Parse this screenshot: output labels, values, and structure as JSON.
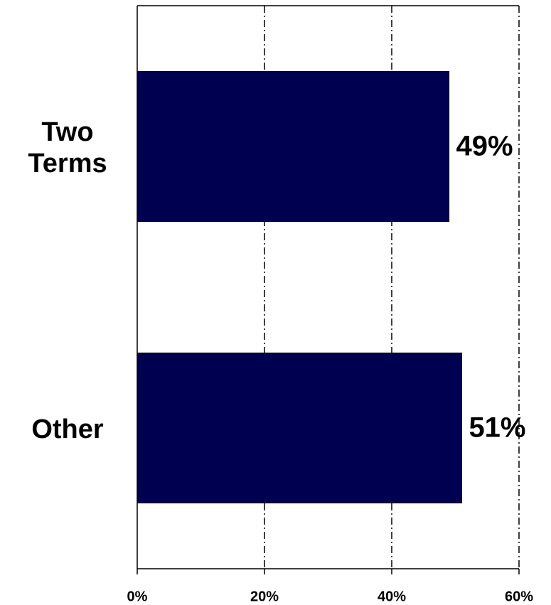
{
  "chart_data": {
    "type": "barh",
    "categories": [
      "Two Terms",
      "Other"
    ],
    "values": [
      49,
      51
    ],
    "value_labels": [
      "49%",
      "51%"
    ],
    "color": "#000050",
    "xlim": [
      0,
      60
    ],
    "xticks": [
      {
        "value": 0,
        "label": "0%"
      },
      {
        "value": 20,
        "label": "20%"
      },
      {
        "value": 40,
        "label": "40%"
      },
      {
        "value": 60,
        "label": "60%"
      }
    ],
    "grid": true
  }
}
